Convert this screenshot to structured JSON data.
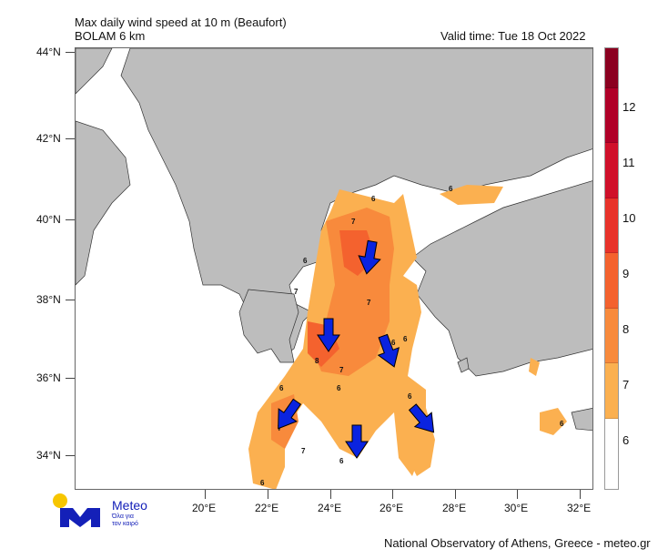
{
  "header": {
    "title": "Max daily wind speed at 10 m (Beaufort)",
    "model": "BOLAM 6 km",
    "valid_time": "Valid time: Tue 18 Oct 2022"
  },
  "axes": {
    "lat": [
      "44°N",
      "42°N",
      "40°N",
      "38°N",
      "36°N",
      "34°N"
    ],
    "lon": [
      "20°E",
      "22°E",
      "24°E",
      "26°E",
      "28°E",
      "30°E",
      "32°E"
    ]
  },
  "colorbar": {
    "labels": [
      "12",
      "11",
      "10",
      "9",
      "8",
      "7",
      "6"
    ],
    "colors": [
      "#8b0020",
      "#b00028",
      "#d0102a",
      "#e8322a",
      "#f4622e",
      "#f88a3c",
      "#fbb050",
      "#ffffff"
    ]
  },
  "map": {
    "contour_labels": [
      "6",
      "7",
      "6",
      "7",
      "6",
      "7",
      "8",
      "7",
      "7",
      "6",
      "6",
      "7",
      "6",
      "6",
      "6",
      "6",
      "6",
      "6"
    ],
    "land_color": "#bdbdbd",
    "arrow_color": "#0a23e0"
  },
  "logo": {
    "name": "Meteo",
    "tagline1": "Όλα για",
    "tagline2": "τον καιρό"
  },
  "footer": {
    "credit": "National Observatory of Athens, Greece - meteo.gr"
  }
}
